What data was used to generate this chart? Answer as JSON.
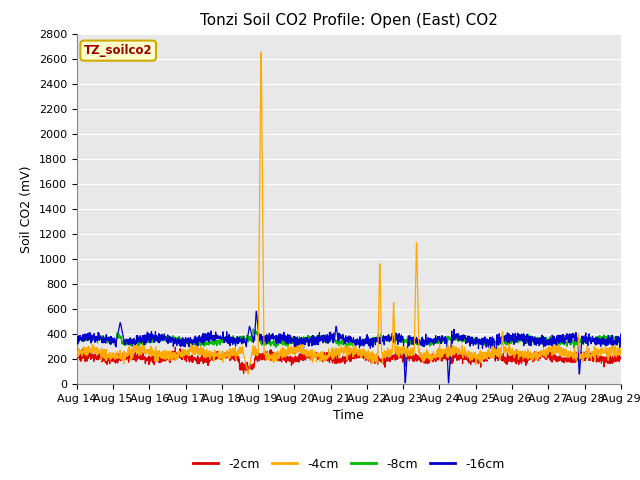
{
  "title": "Tonzi Soil CO2 Profile: Open (East) CO2",
  "ylabel": "Soil CO2 (mV)",
  "xlabel": "Time",
  "annotation_text": "TZ_soilco2",
  "annotation_color": "#990000",
  "annotation_bg": "#ffffcc",
  "annotation_border": "#ccaa00",
  "ylim": [
    0,
    2800
  ],
  "yticks": [
    0,
    200,
    400,
    600,
    800,
    1000,
    1200,
    1400,
    1600,
    1800,
    2000,
    2200,
    2400,
    2600,
    2800
  ],
  "xtick_labels": [
    "Aug 14",
    "Aug 15",
    "Aug 16",
    "Aug 17",
    "Aug 18",
    "Aug 19",
    "Aug 20",
    "Aug 21",
    "Aug 22",
    "Aug 23",
    "Aug 24",
    "Aug 25",
    "Aug 26",
    "Aug 27",
    "Aug 28",
    "Aug 29"
  ],
  "num_points": 2160,
  "colors": {
    "-2cm": "#dd0000",
    "-4cm": "#ffaa00",
    "-8cm": "#00bb00",
    "-16cm": "#0000cc"
  },
  "legend_labels": [
    "-2cm",
    "-4cm",
    "-8cm",
    "-16cm"
  ],
  "plot_bg_color": "#e8e8e8",
  "fig_bg_color": "#ffffff",
  "grid_color": "#ffffff",
  "title_fontsize": 11,
  "label_fontsize": 9,
  "tick_fontsize": 8
}
